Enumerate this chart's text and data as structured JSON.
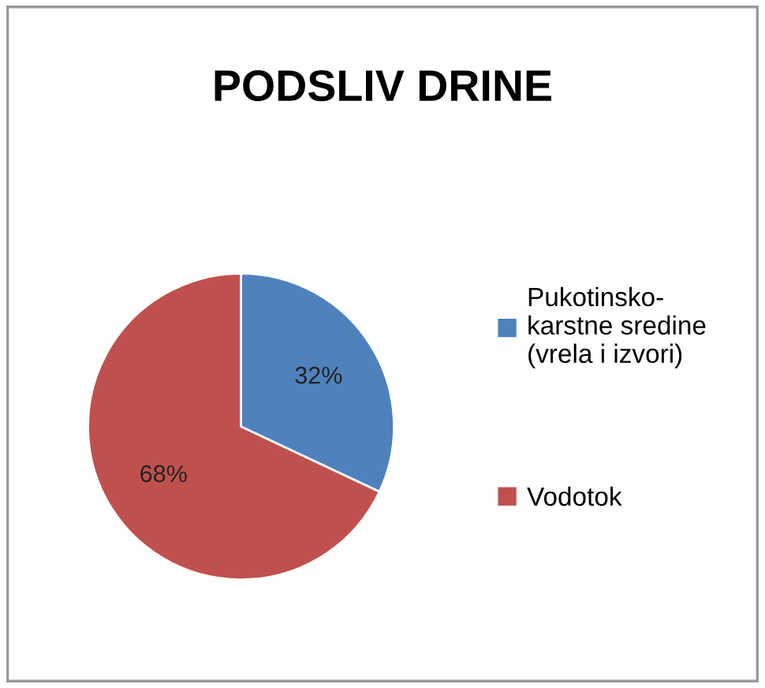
{
  "chart_data": {
    "type": "pie",
    "title": "PODSLIV DRINE",
    "categories": [
      "Pukotinsko-\nkarstne sredine\n(vrela i izvori)",
      "Vodotok"
    ],
    "values": [
      32,
      68
    ],
    "colors": [
      "#4f81bd",
      "#c0504d"
    ],
    "value_labels": [
      "32%",
      "68%"
    ],
    "legend": "right"
  }
}
